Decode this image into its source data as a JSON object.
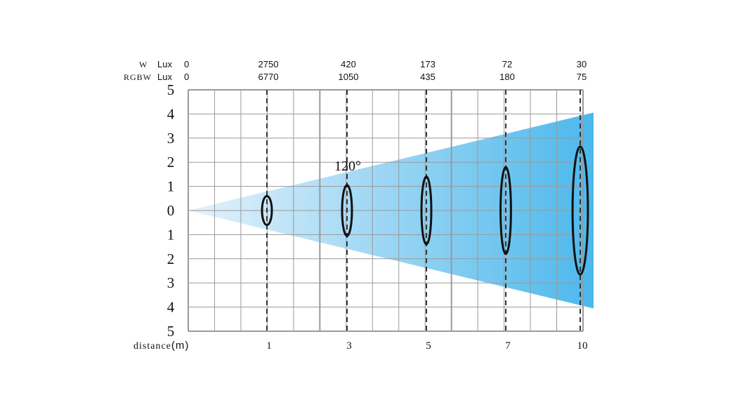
{
  "header": {
    "w_label": "W",
    "rgbw_label": "RGBW",
    "w_unit": "Lux",
    "rgbw_unit": "Lux"
  },
  "beam": {
    "angle_label": "120°",
    "gradient_start": "#e6f2fb",
    "gradient_end": "#4cb8ec"
  },
  "chart_data": {
    "type": "beam-diagram",
    "angle": "120°",
    "y_ticks": [
      "5",
      "4",
      "3",
      "2",
      "1",
      "0",
      "1",
      "2",
      "3",
      "4",
      "5"
    ],
    "x_title": "distance",
    "x_unit": "(m)",
    "positions": [
      {
        "distance": "1",
        "w_lux": "2750",
        "rgbw_lux": "6770",
        "spot_half_height": 0.6
      },
      {
        "distance": "3",
        "w_lux": "420",
        "rgbw_lux": "1050",
        "spot_half_height": 1.05
      },
      {
        "distance": "5",
        "w_lux": "173",
        "rgbw_lux": "435",
        "spot_half_height": 1.4
      },
      {
        "distance": "7",
        "w_lux": "72",
        "rgbw_lux": "180",
        "spot_half_height": 1.8
      },
      {
        "distance": "10",
        "w_lux": "30",
        "rgbw_lux": "75",
        "spot_half_height": 2.65
      }
    ],
    "origin_lux": {
      "w": "0",
      "rgbw": "0"
    },
    "beam_half_height_at_end": 4
  }
}
